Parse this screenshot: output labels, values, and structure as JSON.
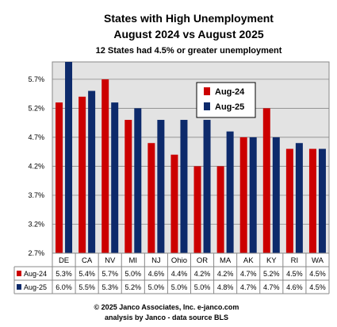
{
  "chart_data": {
    "type": "bar",
    "title": "States with High Unemployment",
    "subtitle": "August 2024 vs August 2025",
    "subtitle2": "12  States had 4.5% or greater unemployment",
    "categories": [
      "DE",
      "CA",
      "NV",
      "MI",
      "NJ",
      "Ohio",
      "OR",
      "MA",
      "AK",
      "KY",
      "RI",
      "WA"
    ],
    "series": [
      {
        "name": "Aug-24",
        "color": "#cc0000",
        "values": [
          5.3,
          5.4,
          5.7,
          5.0,
          4.6,
          4.4,
          4.2,
          4.2,
          4.7,
          5.2,
          4.5,
          4.5
        ],
        "labels": [
          "5.3%",
          "5.4%",
          "5.7%",
          "5.0%",
          "4.6%",
          "4.4%",
          "4.2%",
          "4.2%",
          "4.7%",
          "5.2%",
          "4.5%",
          "4.5%"
        ]
      },
      {
        "name": "Aug-25",
        "color": "#0d2a6b",
        "values": [
          6.0,
          5.5,
          5.3,
          5.2,
          5.0,
          5.0,
          5.0,
          4.8,
          4.7,
          4.7,
          4.6,
          4.5
        ],
        "labels": [
          "6.0%",
          "5.5%",
          "5.3%",
          "5.2%",
          "5.0%",
          "5.0%",
          "5.0%",
          "4.8%",
          "4.7%",
          "4.7%",
          "4.6%",
          "4.5%"
        ]
      }
    ],
    "ylim": [
      2.7,
      6.0
    ],
    "yticks": [
      2.7,
      3.2,
      3.7,
      4.2,
      4.7,
      5.2,
      5.7
    ],
    "ytick_labels": [
      "2.7%",
      "3.2%",
      "3.7%",
      "4.2%",
      "4.7%",
      "5.2%",
      "5.7%"
    ],
    "grid": true,
    "legend_position": "top-right",
    "data_table": true
  },
  "footer": {
    "line1": "© 2025 Janco Associates, Inc. e-janco.com",
    "line2": "analysis by Janco - data source BLS"
  }
}
